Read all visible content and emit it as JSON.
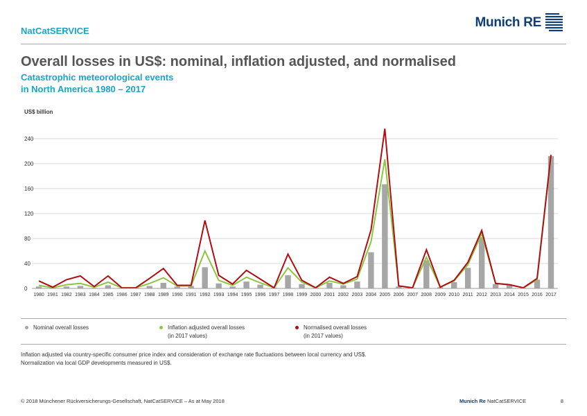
{
  "header": {
    "brand": "NatCatSERVICE",
    "logo_text": "Munich RE"
  },
  "title": "Overall losses in US$: nominal, inflation adjusted, and normalised",
  "subtitle_line1": "Catastrophic meteorological events",
  "subtitle_line2": "in North America 1980 – 2017",
  "legend": {
    "nominal": "Nominal overall losses",
    "inflation_line1": "Inflation adjusted overall losses",
    "inflation_line2": "(in 2017 values)",
    "normalised_line1": "Normalised overall losses",
    "normalised_line2": "(in 2017 values)"
  },
  "notes": {
    "line1": "Inflation adjusted via country-specific consumer price index and consideration of exchange rate fluctuations between local currency and US$.",
    "line2": "Normalization via local GDP developments measured in US$."
  },
  "footer": {
    "copyright": "© 2018 Münchener Rückversicherungs-Gesellschaft, NatCatSERVICE – As at May 2018",
    "brand_bold": "Munich Re",
    "brand_rest": "NatCatSERVICE",
    "page_number": "8"
  },
  "colors": {
    "nominal": "#a6a6a6",
    "inflation": "#8cc63f",
    "normalised": "#b00d12",
    "grid": "#d9d9d9",
    "accent": "#1aa3c8",
    "logo": "#0f3e75"
  },
  "chart_data": {
    "type": "bar",
    "ylabel": "US$ billion",
    "ylim": [
      0,
      240
    ],
    "yticks": [
      0,
      40,
      80,
      120,
      160,
      200,
      240
    ],
    "grid": true,
    "legend_position": "bottom",
    "categories": [
      "1980",
      "1981",
      "1982",
      "1983",
      "1984",
      "1985",
      "1986",
      "1987",
      "1988",
      "1989",
      "1990",
      "1991",
      "1992",
      "1993",
      "1994",
      "1995",
      "1996",
      "1997",
      "1998",
      "1999",
      "2000",
      "2001",
      "2002",
      "2003",
      "2004",
      "2005",
      "2006",
      "2007",
      "2008",
      "2009",
      "2010",
      "2011",
      "2012",
      "2013",
      "2014",
      "2015",
      "2016",
      "2017"
    ],
    "series": [
      {
        "name": "Nominal overall losses",
        "kind": "bar",
        "values": [
          3,
          1,
          3,
          4,
          1,
          5,
          1,
          1,
          4,
          9,
          3,
          4,
          34,
          8,
          3,
          11,
          6,
          1,
          21,
          7,
          1,
          9,
          5,
          11,
          58,
          167,
          3,
          1,
          45,
          2,
          10,
          33,
          82,
          7,
          5,
          1,
          14,
          212
        ]
      },
      {
        "name": "Inflation adjusted overall losses",
        "kind": "line",
        "values": [
          5,
          1,
          6,
          8,
          2,
          10,
          1,
          1,
          8,
          17,
          4,
          4,
          60,
          13,
          5,
          18,
          9,
          1,
          33,
          10,
          1,
          12,
          7,
          15,
          75,
          207,
          4,
          1,
          50,
          2,
          12,
          38,
          88,
          8,
          6,
          1,
          14,
          214
        ]
      },
      {
        "name": "Normalised overall losses",
        "kind": "line",
        "values": [
          12,
          2,
          14,
          20,
          3,
          20,
          1,
          1,
          16,
          32,
          5,
          5,
          109,
          21,
          7,
          29,
          15,
          1,
          55,
          13,
          1,
          18,
          8,
          19,
          94,
          256,
          4,
          1,
          62,
          2,
          13,
          42,
          93,
          8,
          6,
          1,
          16,
          214
        ]
      }
    ]
  }
}
